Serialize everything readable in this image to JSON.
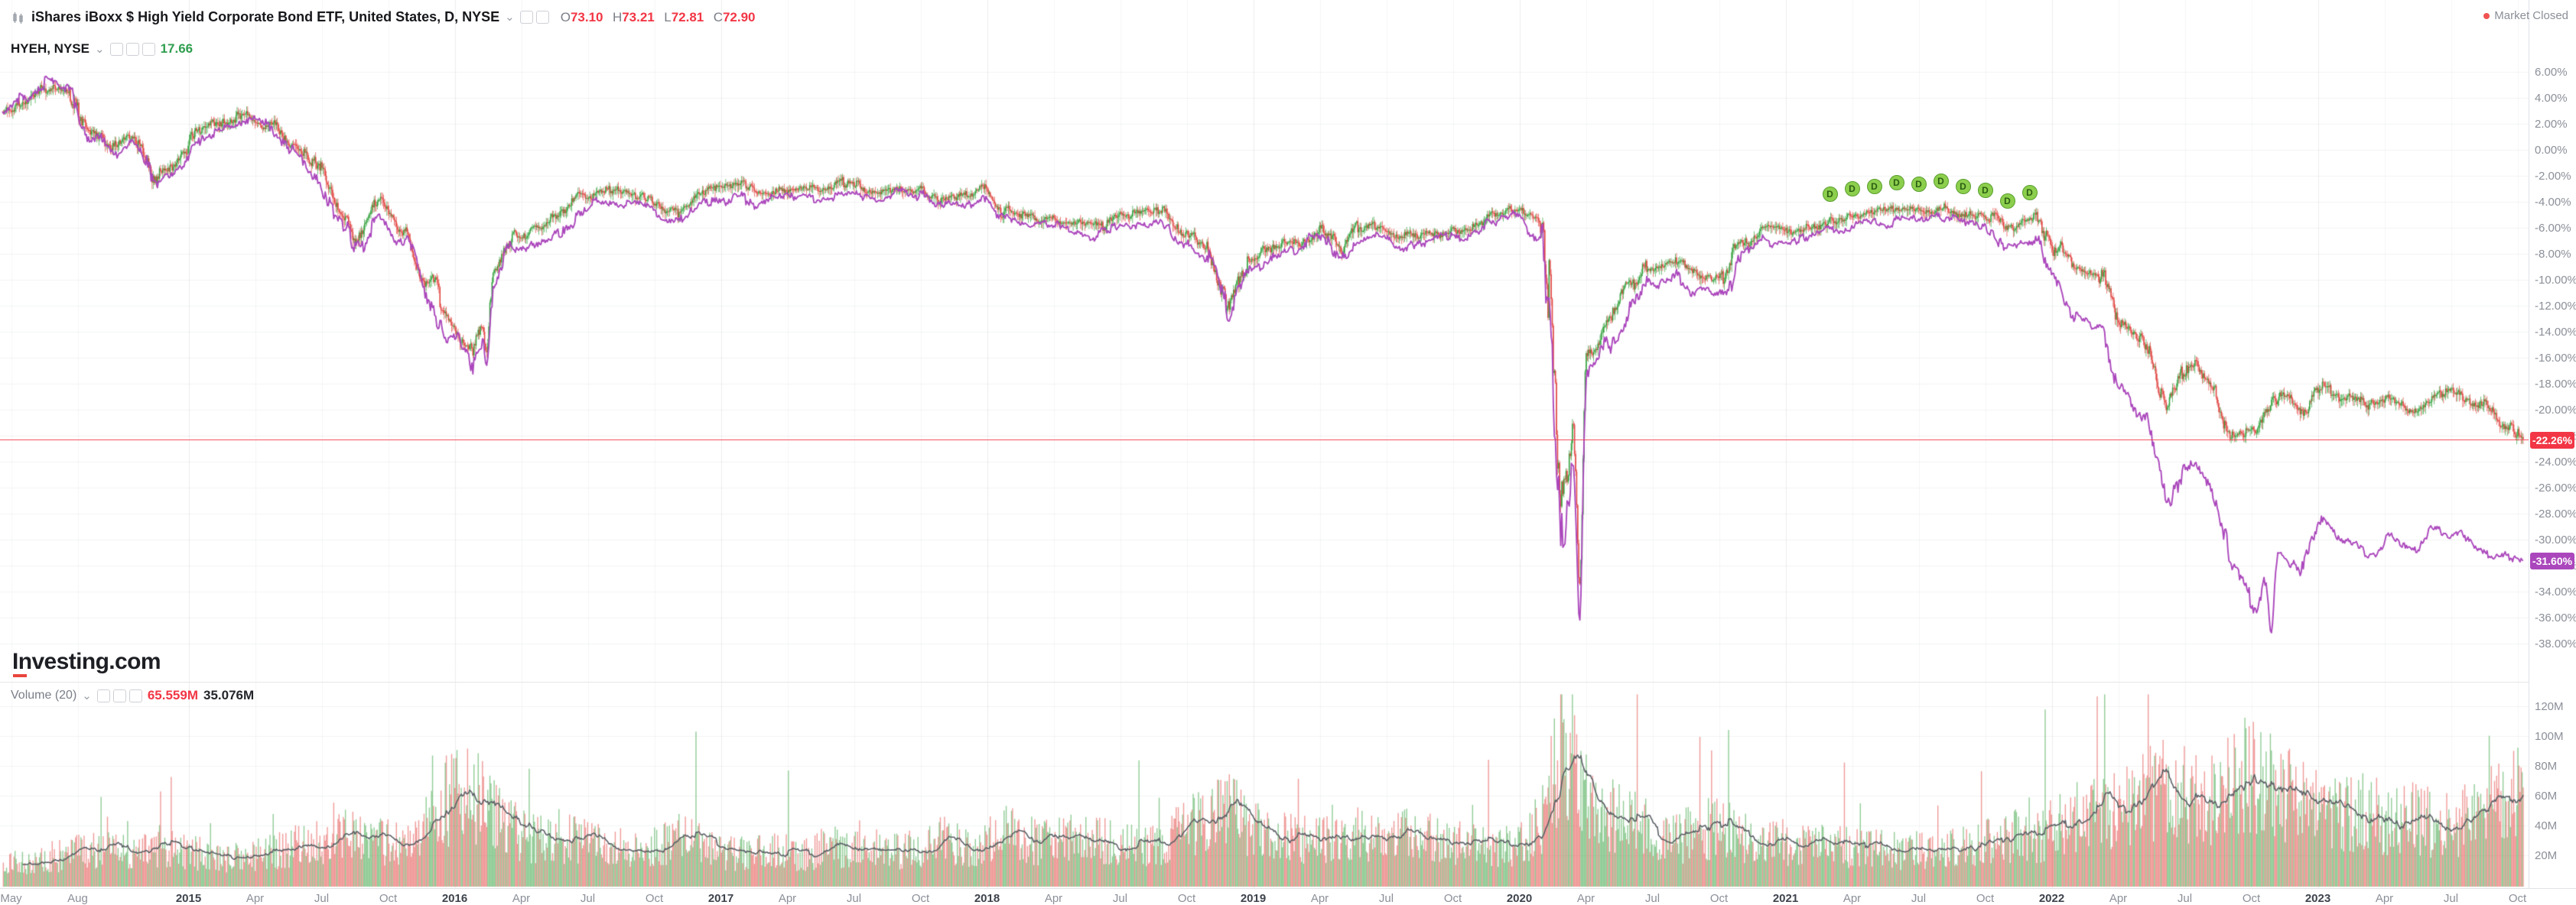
{
  "header": {
    "symbol_title": "iShares iBoxx $ High Yield Corporate Bond ETF, United States, D, NYSE",
    "ohlc": {
      "o_label": "O",
      "o": "73.10",
      "h_label": "H",
      "h": "73.21",
      "l_label": "L",
      "l": "72.81",
      "c_label": "C",
      "c": "72.90"
    },
    "compare": {
      "name": "HYEH, NYSE",
      "value": "17.66"
    },
    "market_status": "Market Closed"
  },
  "logo": {
    "text": "Investing",
    "suffix": ".com"
  },
  "volume_pane": {
    "label": "Volume (20)",
    "value": "65.559M",
    "ma_value": "35.076M"
  },
  "icons": {
    "caret_down": "⌄",
    "market_dot": "●",
    "dividend_letter": "D"
  },
  "price_axis": {
    "labels": [
      "6.00%",
      "4.00%",
      "2.00%",
      "0.00%",
      "-2.00%",
      "-4.00%",
      "-6.00%",
      "-8.00%",
      "-10.00%",
      "-12.00%",
      "-14.00%",
      "-16.00%",
      "-18.00%",
      "-20.00%",
      "-22.00%",
      "-24.00%",
      "-26.00%",
      "-28.00%",
      "-30.00%",
      "-32.00%",
      "-34.00%",
      "-36.00%",
      "-38.00%"
    ],
    "top_value": 6,
    "step": -2,
    "last_price_label": "-22.26%",
    "compare_price_label": "-31.60%"
  },
  "volume_axis": {
    "labels": [
      "120M",
      "100M",
      "80M",
      "60M",
      "40M",
      "20M"
    ],
    "values": [
      120,
      100,
      80,
      60,
      40,
      20
    ]
  },
  "time_axis": {
    "ticks": [
      {
        "t": "May",
        "m": 0
      },
      {
        "t": "Aug",
        "m": 3
      },
      {
        "t": "2015",
        "m": 8
      },
      {
        "t": "Apr",
        "m": 11
      },
      {
        "t": "Jul",
        "m": 14
      },
      {
        "t": "Oct",
        "m": 17
      },
      {
        "t": "2016",
        "m": 20
      },
      {
        "t": "Apr",
        "m": 23
      },
      {
        "t": "Jul",
        "m": 26
      },
      {
        "t": "Oct",
        "m": 29
      },
      {
        "t": "2017",
        "m": 32
      },
      {
        "t": "Apr",
        "m": 35
      },
      {
        "t": "Jul",
        "m": 38
      },
      {
        "t": "Oct",
        "m": 41
      },
      {
        "t": "2018",
        "m": 44
      },
      {
        "t": "Apr",
        "m": 47
      },
      {
        "t": "Jul",
        "m": 50
      },
      {
        "t": "Oct",
        "m": 53
      },
      {
        "t": "2019",
        "m": 56
      },
      {
        "t": "Apr",
        "m": 59
      },
      {
        "t": "Jul",
        "m": 62
      },
      {
        "t": "Oct",
        "m": 65
      },
      {
        "t": "2020",
        "m": 68
      },
      {
        "t": "Apr",
        "m": 71
      },
      {
        "t": "Jul",
        "m": 74
      },
      {
        "t": "Oct",
        "m": 77
      },
      {
        "t": "2021",
        "m": 80
      },
      {
        "t": "Apr",
        "m": 83
      },
      {
        "t": "Jul",
        "m": 86
      },
      {
        "t": "Oct",
        "m": 89
      },
      {
        "t": "2022",
        "m": 92
      },
      {
        "t": "Apr",
        "m": 95
      },
      {
        "t": "Jul",
        "m": 98
      },
      {
        "t": "Oct",
        "m": 101
      },
      {
        "t": "2023",
        "m": 104
      },
      {
        "t": "Apr",
        "m": 107
      },
      {
        "t": "Jul",
        "m": 110
      },
      {
        "t": "Oct",
        "m": 113
      }
    ]
  },
  "colors": {
    "up": "#36a340",
    "down": "#e14743",
    "compare_line": "#ab47bc",
    "last_price": "#f23645",
    "compare_badge": "#ab47bc",
    "volume_up": "rgba(54,163,64,0.55)",
    "volume_down": "rgba(225,71,67,0.55)",
    "volume_ma": "#5c6066",
    "grid": "rgba(42,46,57,0.06)",
    "axis_text": "#8b8f98",
    "marker_bg": "#8ccf4d",
    "marker_border": "#5a9e2e",
    "marker_text": "#2c5e12"
  },
  "chart_data": {
    "type": "candlestick",
    "unit": "percent_change",
    "start_month": "2014-05",
    "end_month": "2023-10",
    "ylim": [
      -38,
      6
    ],
    "volume_ylim": [
      0,
      120
    ],
    "series": [
      {
        "name": "iShares iBoxx $ High Yield Corporate Bond ETF (% change)",
        "type": "candlestick",
        "monthly_pct": [
          3.2,
          3.8,
          4.6,
          4.2,
          1.5,
          0.3,
          1.0,
          -1.8,
          -0.5,
          1.6,
          2.0,
          2.6,
          2.1,
          0.5,
          -1.0,
          -4.2,
          -6.5,
          -4.0,
          -6.5,
          -10.0,
          -13.0,
          -14.8,
          -9.0,
          -6.5,
          -6.0,
          -5.2,
          -3.5,
          -3.0,
          -3.2,
          -3.6,
          -4.6,
          -3.6,
          -3.0,
          -2.6,
          -3.4,
          -3.0,
          -2.8,
          -3.1,
          -2.6,
          -3.2,
          -2.8,
          -3.0,
          -3.8,
          -3.5,
          -3.0,
          -4.6,
          -5.1,
          -5.3,
          -5.5,
          -5.8,
          -5.1,
          -4.9,
          -4.8,
          -6.6,
          -7.6,
          -11.6,
          -8.6,
          -7.6,
          -7.1,
          -6.1,
          -7.6,
          -6.1,
          -5.9,
          -6.6,
          -6.3,
          -6.1,
          -5.9,
          -4.9,
          -4.6,
          -6.1,
          -26.0,
          -15.5,
          -13.0,
          -10.5,
          -9.0,
          -8.5,
          -9.6,
          -9.9,
          -7.1,
          -6.0,
          -6.2,
          -5.8,
          -5.4,
          -5.0,
          -4.8,
          -4.5,
          -4.6,
          -4.4,
          -4.8,
          -5.1,
          -5.9,
          -5.3,
          -7.6,
          -9.1,
          -9.6,
          -13.1,
          -14.6,
          -19.6,
          -16.6,
          -18.1,
          -22.1,
          -21.6,
          -19.1,
          -20.1,
          -17.6,
          -19.1,
          -19.6,
          -19.1,
          -20.1,
          -19.1,
          -18.6,
          -19.6,
          -21.1,
          -22.26
        ]
      },
      {
        "name": "HYEH, NYSE (% change)",
        "type": "line",
        "monthly_pct": [
          2.8,
          4.0,
          5.2,
          4.5,
          1.2,
          -0.5,
          0.6,
          -2.6,
          -1.4,
          1.0,
          1.7,
          2.3,
          1.8,
          0.0,
          -1.8,
          -5.0,
          -7.4,
          -5.0,
          -7.2,
          -11.0,
          -14.2,
          -16.2,
          -10.2,
          -7.6,
          -7.1,
          -6.4,
          -4.6,
          -3.9,
          -4.1,
          -4.4,
          -5.6,
          -4.6,
          -4.0,
          -3.4,
          -4.2,
          -3.7,
          -3.4,
          -3.6,
          -3.1,
          -3.7,
          -3.3,
          -3.5,
          -4.3,
          -4.1,
          -3.5,
          -5.1,
          -5.7,
          -5.9,
          -6.2,
          -6.6,
          -6.0,
          -5.7,
          -5.5,
          -7.3,
          -8.3,
          -12.4,
          -9.4,
          -8.3,
          -7.7,
          -6.7,
          -8.3,
          -6.8,
          -6.5,
          -7.3,
          -6.9,
          -6.7,
          -6.4,
          -5.5,
          -5.1,
          -6.9,
          -29.0,
          -17.5,
          -15.0,
          -12.2,
          -10.2,
          -9.6,
          -10.7,
          -11.0,
          -8.1,
          -7.1,
          -7.1,
          -6.6,
          -6.2,
          -5.8,
          -5.6,
          -5.3,
          -5.4,
          -5.2,
          -5.7,
          -6.1,
          -7.4,
          -7.1,
          -10.1,
          -12.6,
          -13.6,
          -18.1,
          -20.6,
          -27.1,
          -24.1,
          -26.1,
          -32.1,
          -35.3,
          -31.1,
          -32.1,
          -28.6,
          -30.1,
          -31.1,
          -29.6,
          -30.6,
          -29.1,
          -29.6,
          -30.6,
          -31.1,
          -31.6
        ]
      }
    ],
    "volume": {
      "name": "Volume",
      "unit": "millions_of_shares",
      "ma_period": 20,
      "monthly_avg_millions": [
        15,
        15,
        18,
        20,
        25,
        22,
        20,
        26,
        22,
        20,
        18,
        20,
        22,
        25,
        28,
        36,
        30,
        28,
        30,
        40,
        56,
        60,
        46,
        35,
        30,
        32,
        28,
        25,
        24,
        26,
        31,
        28,
        22,
        20,
        24,
        22,
        20,
        26,
        22,
        26,
        22,
        24,
        30,
        26,
        27,
        35,
        30,
        28,
        30,
        32,
        28,
        24,
        26,
        38,
        41,
        52,
        38,
        32,
        30,
        28,
        38,
        32,
        28,
        34,
        30,
        28,
        26,
        24,
        26,
        42,
        96,
        56,
        45,
        42,
        35,
        30,
        36,
        38,
        32,
        28,
        28,
        26,
        26,
        24,
        24,
        22,
        24,
        22,
        26,
        28,
        33,
        28,
        40,
        46,
        48,
        50,
        56,
        72,
        56,
        58,
        68,
        74,
        60,
        55,
        50,
        45,
        48,
        42,
        45,
        40,
        38,
        50,
        56,
        60
      ]
    },
    "spikes": [
      {
        "m": 21,
        "hyg": -15.6,
        "hyeh": -16.6
      },
      {
        "m": 70,
        "hyg": -33.5,
        "hyeh": -36.3
      },
      {
        "m": 101,
        "hyeh": -37.2
      }
    ],
    "markers": {
      "kind": "dividend",
      "label": "D",
      "month_indices": [
        82,
        83,
        84,
        85,
        86,
        87,
        88,
        89,
        90,
        91
      ]
    },
    "current": {
      "hyg_pct": -22.26,
      "hyeh_pct": -31.6,
      "volume_m": 65.559,
      "volume_ma_m": 35.076
    }
  }
}
